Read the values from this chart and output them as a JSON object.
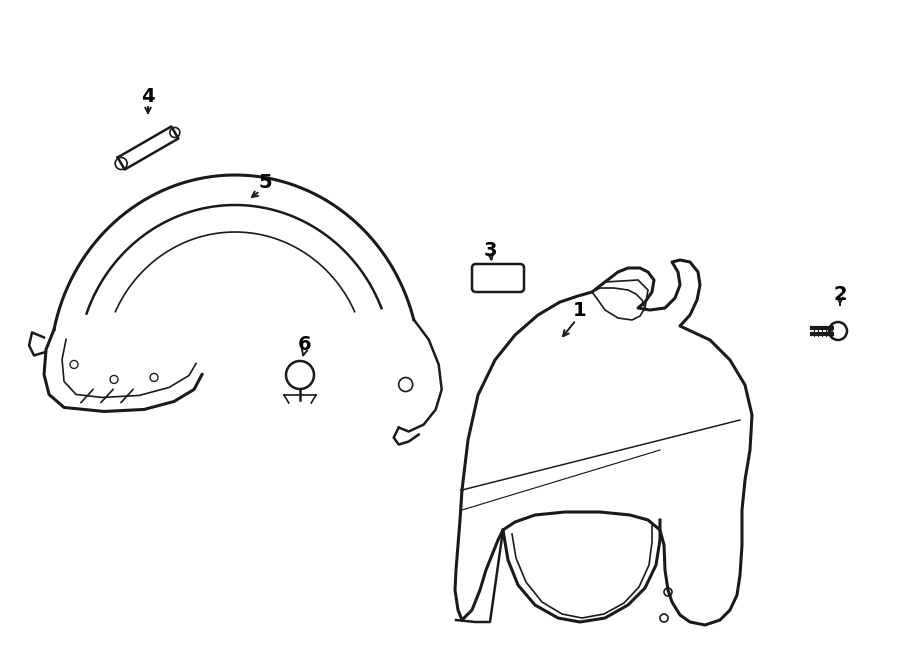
{
  "background_color": "#ffffff",
  "line_color": "#1a1a1a",
  "text_color": "#000000",
  "label_fontsize": 14,
  "figw": 9.0,
  "figh": 6.61,
  "dpi": 100
}
